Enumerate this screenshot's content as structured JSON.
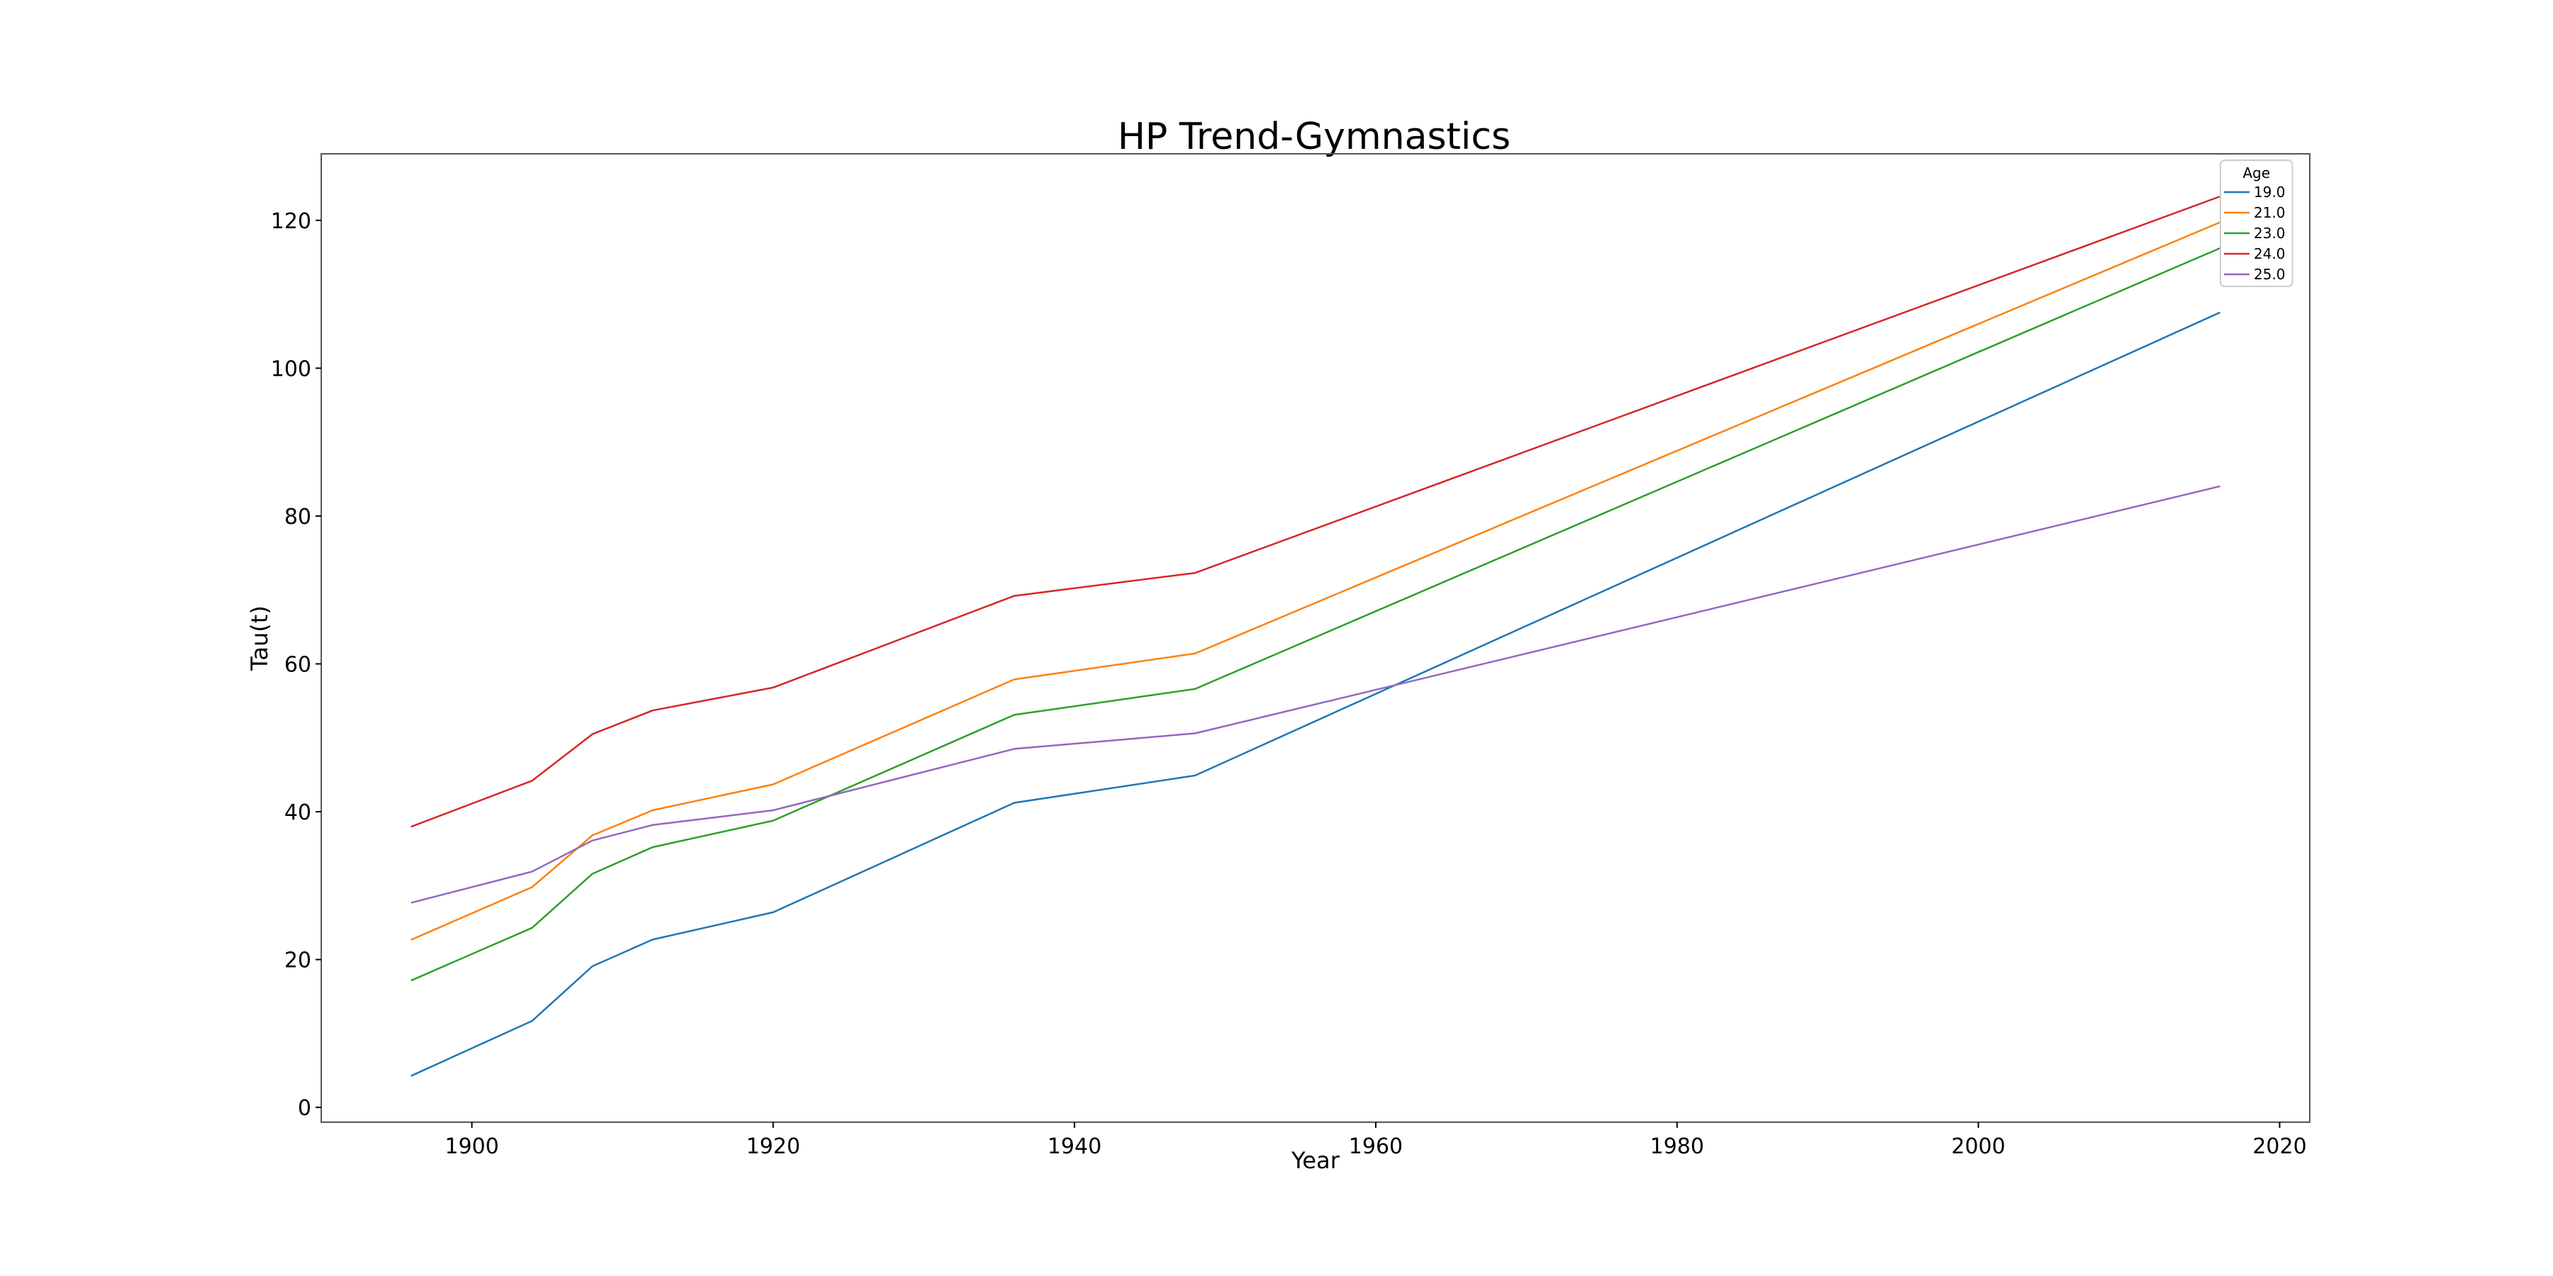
{
  "chart_data": {
    "type": "line",
    "title": "HP Trend-Gymnastics",
    "xlabel": "Year",
    "ylabel": "Tau(t)",
    "xlim": [
      1890,
      2022
    ],
    "ylim": [
      -2,
      129
    ],
    "xticks": [
      1900,
      1920,
      1940,
      1960,
      1980,
      2000,
      2020
    ],
    "yticks": [
      0,
      20,
      40,
      60,
      80,
      100,
      120
    ],
    "grid": false,
    "legend": {
      "title": "Age",
      "placement": "top-right"
    },
    "x": [
      1896,
      1904,
      1908,
      1912,
      1920,
      1936,
      1948,
      2016
    ],
    "series": [
      {
        "name": "19.0",
        "color": "#1f77b4",
        "values": [
          4.3,
          11.7,
          19.1,
          22.7,
          26.4,
          41.2,
          44.9,
          107.5
        ]
      },
      {
        "name": "21.0",
        "color": "#ff7f0e",
        "values": [
          22.7,
          29.8,
          36.8,
          40.2,
          43.7,
          57.9,
          61.4,
          119.7
        ]
      },
      {
        "name": "23.0",
        "color": "#2ca02c",
        "values": [
          17.2,
          24.3,
          31.6,
          35.2,
          38.8,
          53.1,
          56.6,
          116.2
        ]
      },
      {
        "name": "24.0",
        "color": "#d62728",
        "values": [
          38.0,
          44.2,
          50.5,
          53.7,
          56.8,
          69.2,
          72.3,
          123.2
        ]
      },
      {
        "name": "25.0",
        "color": "#9467bd",
        "values": [
          27.7,
          31.9,
          36.1,
          38.2,
          40.2,
          48.5,
          50.6,
          84.0
        ]
      }
    ]
  }
}
